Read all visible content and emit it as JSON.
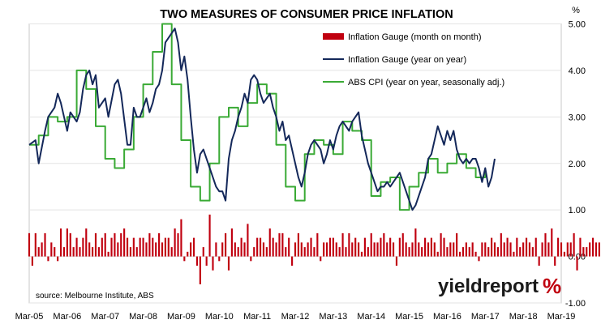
{
  "chart_data": {
    "type": "line",
    "title": "TWO MEASURES OF CONSUMER PRICE INFLATION",
    "y_unit": "%",
    "ylim": [
      -1.0,
      5.0
    ],
    "y_ticks": [
      "5.00",
      "4.00",
      "3.00",
      "2.00",
      "1.00",
      "0.00",
      "-1.00"
    ],
    "y_tick_values": [
      5,
      4,
      3,
      2,
      1,
      0,
      -1
    ],
    "x_ticks": [
      "Mar-05",
      "Mar-06",
      "Mar-07",
      "Mar-08",
      "Mar-09",
      "Mar-10",
      "Mar-11",
      "Mar-12",
      "Mar-13",
      "Mar-14",
      "Mar-15",
      "Mar-16",
      "Mar-17",
      "Mar-18",
      "Mar-19"
    ],
    "x_start": "Mar-05",
    "x_end": "Mar-19",
    "grid": "horizontal",
    "legend_position": "top-right",
    "source_note": "source: Melbourne Institute, ABS",
    "brand": {
      "text": "yieldreport",
      "symbol": "%"
    },
    "series": [
      {
        "name": "Inflation Gauge (month on month)",
        "kind": "bar",
        "color": "#c0000f",
        "values": [
          0.5,
          -0.2,
          0.5,
          0.2,
          0.3,
          0.5,
          -0.1,
          0.3,
          0.2,
          -0.1,
          0.6,
          0.2,
          0.6,
          0.5,
          0.2,
          0.4,
          0.2,
          0.4,
          0.6,
          0.3,
          0.2,
          0.5,
          0.2,
          0.4,
          0.5,
          0.1,
          0.4,
          0.5,
          0.3,
          0.5,
          0.6,
          0.4,
          0.2,
          0.4,
          0.2,
          0.4,
          0.4,
          0.3,
          0.5,
          0.4,
          0.3,
          0.5,
          0.3,
          0.4,
          0.4,
          0.2,
          0.6,
          0.5,
          0.8,
          -0.1,
          0.1,
          0.3,
          0.4,
          -0.2,
          -0.6,
          0.2,
          -0.2,
          0.9,
          -0.3,
          0.3,
          -0.1,
          0.3,
          0.5,
          -0.3,
          0.6,
          0.3,
          0.2,
          0.4,
          0.3,
          0.7,
          -0.1,
          0.2,
          0.4,
          0.4,
          0.3,
          0.2,
          0.6,
          0.4,
          0.3,
          0.5,
          0.5,
          0.2,
          0.4,
          -0.2,
          0.3,
          0.5,
          0.3,
          0.2,
          0.3,
          0.4,
          0.2,
          0.5,
          -0.1,
          0.3,
          0.3,
          0.4,
          0.4,
          0.3,
          0.2,
          0.5,
          0.2,
          0.5,
          0.3,
          0.4,
          0.3,
          0.1,
          0.4,
          0.2,
          0.5,
          0.3,
          0.3,
          0.4,
          0.5,
          0.3,
          0.4,
          0.3,
          -0.2,
          0.4,
          0.5,
          0.3,
          0.2,
          0.3,
          0.6,
          0.3,
          0.2,
          0.4,
          0.3,
          0.4,
          0.3,
          0.1,
          0.5,
          0.4,
          0.2,
          0.3,
          0.3,
          0.5,
          0.1,
          0.2,
          0.3,
          0.2,
          0.3,
          0.1,
          -0.1,
          0.3,
          0.3,
          0.2,
          0.4,
          0.3,
          0.2,
          0.5,
          0.3,
          0.4,
          0.3,
          0.1,
          0.4,
          0.2,
          0.3,
          0.4,
          0.3,
          0.2,
          0.4,
          -0.2,
          0.3,
          0.5,
          0.3,
          0.6,
          -0.2,
          0.4,
          0.3,
          0.1,
          0.3,
          0.3,
          0.5,
          -0.3,
          0.4,
          0.2,
          0.2,
          0.3,
          0.4,
          0.3,
          0.3,
          0.5,
          0.2,
          0.4,
          0.3,
          0.2,
          0.3,
          0.3,
          0.2,
          0.4,
          0.2,
          0.3,
          0.3,
          0.1,
          0.4,
          -0.1,
          0.4,
          0.3,
          0.2,
          0.4
        ]
      },
      {
        "name": "Inflation Gauge (year on year)",
        "kind": "line",
        "color": "#14285a",
        "points": [
          [
            0,
            2.4
          ],
          [
            2,
            2.5
          ],
          [
            3,
            2.0
          ],
          [
            5,
            2.7
          ],
          [
            6,
            3.0
          ],
          [
            8,
            3.2
          ],
          [
            9,
            3.5
          ],
          [
            10,
            3.3
          ],
          [
            11,
            3.0
          ],
          [
            12,
            2.7
          ],
          [
            13,
            3.1
          ],
          [
            14,
            3.0
          ],
          [
            15,
            2.9
          ],
          [
            16,
            3.1
          ],
          [
            17,
            3.6
          ],
          [
            18,
            3.9
          ],
          [
            19,
            4.0
          ],
          [
            20,
            3.7
          ],
          [
            21,
            3.9
          ],
          [
            22,
            3.2
          ],
          [
            24,
            3.4
          ],
          [
            25,
            3.0
          ],
          [
            27,
            3.7
          ],
          [
            28,
            3.8
          ],
          [
            29,
            3.5
          ],
          [
            31,
            2.4
          ],
          [
            32,
            2.4
          ],
          [
            33,
            3.2
          ],
          [
            34,
            3.0
          ],
          [
            35,
            3.0
          ],
          [
            36,
            3.2
          ],
          [
            37,
            3.4
          ],
          [
            38,
            3.1
          ],
          [
            39,
            3.3
          ],
          [
            40,
            3.6
          ],
          [
            41,
            3.7
          ],
          [
            42,
            4.0
          ],
          [
            43,
            4.6
          ],
          [
            44,
            4.7
          ],
          [
            45,
            4.8
          ],
          [
            46,
            4.9
          ],
          [
            47,
            4.6
          ],
          [
            48,
            4.0
          ],
          [
            49,
            4.3
          ],
          [
            50,
            3.8
          ],
          [
            51,
            3.0
          ],
          [
            52,
            2.3
          ],
          [
            53,
            1.8
          ],
          [
            54,
            2.2
          ],
          [
            55,
            2.3
          ],
          [
            57,
            1.9
          ],
          [
            58,
            1.7
          ],
          [
            59,
            1.5
          ],
          [
            60,
            1.4
          ],
          [
            61,
            1.4
          ],
          [
            62,
            1.2
          ],
          [
            63,
            2.1
          ],
          [
            64,
            2.5
          ],
          [
            65,
            2.7
          ],
          [
            66,
            3.0
          ],
          [
            67,
            3.2
          ],
          [
            68,
            3.5
          ],
          [
            69,
            3.3
          ],
          [
            70,
            3.8
          ],
          [
            71,
            3.9
          ],
          [
            72,
            3.8
          ],
          [
            73,
            3.5
          ],
          [
            74,
            3.3
          ],
          [
            75,
            3.4
          ],
          [
            76,
            3.5
          ],
          [
            77,
            3.2
          ],
          [
            78,
            3.0
          ],
          [
            79,
            2.7
          ],
          [
            80,
            2.9
          ],
          [
            81,
            2.5
          ],
          [
            82,
            2.6
          ],
          [
            84,
            2.0
          ],
          [
            85,
            1.7
          ],
          [
            86,
            1.5
          ],
          [
            87,
            1.8
          ],
          [
            88,
            2.2
          ],
          [
            89,
            2.4
          ],
          [
            90,
            2.5
          ],
          [
            91,
            2.4
          ],
          [
            92,
            2.3
          ],
          [
            93,
            2.0
          ],
          [
            94,
            2.2
          ],
          [
            95,
            2.5
          ],
          [
            96,
            2.3
          ],
          [
            97,
            2.6
          ],
          [
            98,
            2.8
          ],
          [
            99,
            2.9
          ],
          [
            100,
            2.8
          ],
          [
            101,
            2.7
          ],
          [
            102,
            2.9
          ],
          [
            103,
            3.0
          ],
          [
            104,
            3.1
          ],
          [
            105,
            2.6
          ],
          [
            106,
            2.3
          ],
          [
            107,
            2.0
          ],
          [
            108,
            1.8
          ],
          [
            109,
            1.6
          ],
          [
            110,
            1.4
          ],
          [
            111,
            1.5
          ],
          [
            112,
            1.5
          ],
          [
            113,
            1.6
          ],
          [
            114,
            1.5
          ],
          [
            115,
            1.6
          ],
          [
            116,
            1.7
          ],
          [
            117,
            1.8
          ],
          [
            118,
            1.6
          ],
          [
            119,
            1.4
          ],
          [
            120,
            1.2
          ],
          [
            121,
            1.0
          ],
          [
            122,
            1.1
          ],
          [
            123,
            1.3
          ],
          [
            124,
            1.5
          ],
          [
            125,
            1.7
          ],
          [
            126,
            2.1
          ],
          [
            127,
            2.2
          ],
          [
            128,
            2.5
          ],
          [
            129,
            2.8
          ],
          [
            130,
            2.6
          ],
          [
            131,
            2.4
          ],
          [
            132,
            2.7
          ],
          [
            133,
            2.5
          ],
          [
            134,
            2.7
          ],
          [
            135,
            2.3
          ],
          [
            136,
            2.1
          ],
          [
            137,
            2.0
          ],
          [
            138,
            2.1
          ],
          [
            139,
            2.0
          ],
          [
            140,
            2.1
          ],
          [
            141,
            2.1
          ],
          [
            142,
            1.9
          ],
          [
            143,
            1.6
          ],
          [
            144,
            1.9
          ],
          [
            145,
            1.5
          ],
          [
            146,
            1.7
          ],
          [
            147,
            2.1
          ]
        ]
      },
      {
        "name": "ABS CPI (year on year, seasonally adj.)",
        "kind": "line",
        "color": "#3aaa35",
        "points": [
          [
            0,
            2.4
          ],
          [
            3,
            2.4
          ],
          [
            3,
            2.6
          ],
          [
            6,
            2.6
          ],
          [
            6,
            3.0
          ],
          [
            9,
            3.0
          ],
          [
            9,
            2.9
          ],
          [
            12,
            2.9
          ],
          [
            12,
            3.0
          ],
          [
            15,
            3.0
          ],
          [
            15,
            4.0
          ],
          [
            18,
            4.0
          ],
          [
            18,
            3.6
          ],
          [
            21,
            3.6
          ],
          [
            21,
            2.8
          ],
          [
            24,
            2.8
          ],
          [
            24,
            2.1
          ],
          [
            27,
            2.1
          ],
          [
            27,
            1.9
          ],
          [
            30,
            1.9
          ],
          [
            30,
            2.3
          ],
          [
            33,
            2.3
          ],
          [
            33,
            3.0
          ],
          [
            36,
            3.0
          ],
          [
            36,
            3.7
          ],
          [
            39,
            3.7
          ],
          [
            39,
            4.4
          ],
          [
            42,
            4.4
          ],
          [
            42,
            5.0
          ],
          [
            45,
            5.0
          ],
          [
            45,
            3.7
          ],
          [
            48,
            3.7
          ],
          [
            48,
            2.5
          ],
          [
            51,
            2.5
          ],
          [
            51,
            1.5
          ],
          [
            54,
            1.5
          ],
          [
            54,
            1.2
          ],
          [
            57,
            1.2
          ],
          [
            57,
            2.0
          ],
          [
            60,
            2.0
          ],
          [
            60,
            3.0
          ],
          [
            63,
            3.0
          ],
          [
            63,
            3.2
          ],
          [
            66,
            3.2
          ],
          [
            66,
            2.8
          ],
          [
            69,
            2.8
          ],
          [
            69,
            3.3
          ],
          [
            72,
            3.3
          ],
          [
            72,
            3.7
          ],
          [
            75,
            3.7
          ],
          [
            75,
            3.5
          ],
          [
            78,
            3.5
          ],
          [
            78,
            2.4
          ],
          [
            81,
            2.4
          ],
          [
            81,
            1.5
          ],
          [
            84,
            1.5
          ],
          [
            84,
            1.2
          ],
          [
            87,
            1.2
          ],
          [
            87,
            2.2
          ],
          [
            90,
            2.2
          ],
          [
            90,
            2.5
          ],
          [
            93,
            2.5
          ],
          [
            93,
            2.4
          ],
          [
            96,
            2.4
          ],
          [
            96,
            2.2
          ],
          [
            99,
            2.2
          ],
          [
            99,
            2.9
          ],
          [
            102,
            2.9
          ],
          [
            102,
            2.7
          ],
          [
            105,
            2.7
          ],
          [
            105,
            2.5
          ],
          [
            108,
            2.5
          ],
          [
            108,
            1.3
          ],
          [
            111,
            1.3
          ],
          [
            111,
            1.6
          ],
          [
            114,
            1.6
          ],
          [
            114,
            1.7
          ],
          [
            117,
            1.7
          ],
          [
            117,
            1.0
          ],
          [
            120,
            1.0
          ],
          [
            120,
            1.5
          ],
          [
            123,
            1.5
          ],
          [
            123,
            1.8
          ],
          [
            126,
            1.8
          ],
          [
            126,
            2.1
          ],
          [
            129,
            2.1
          ],
          [
            129,
            1.8
          ],
          [
            132,
            1.8
          ],
          [
            132,
            2.0
          ],
          [
            135,
            2.0
          ],
          [
            135,
            2.2
          ],
          [
            138,
            2.2
          ],
          [
            138,
            1.9
          ],
          [
            141,
            1.9
          ],
          [
            141,
            1.7
          ],
          [
            144,
            1.7
          ],
          [
            144,
            1.8
          ]
        ]
      }
    ]
  }
}
